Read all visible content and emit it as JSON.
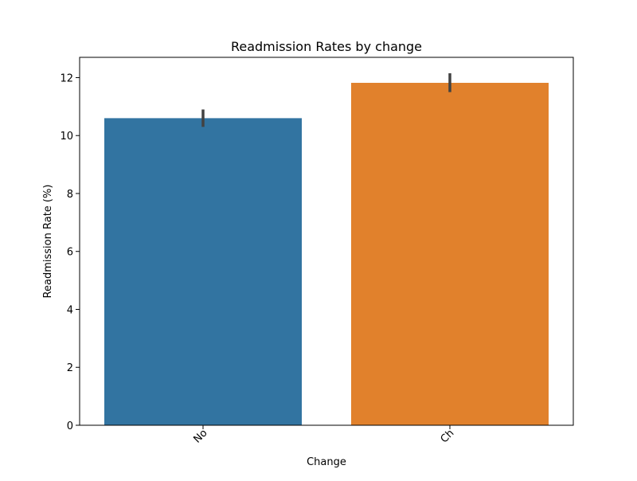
{
  "chart_data": {
    "type": "bar",
    "title": "Readmission Rates by change",
    "xlabel": "Change",
    "ylabel": "Readmission Rate (%)",
    "categories": [
      "No",
      "Ch"
    ],
    "values": [
      10.6,
      11.82
    ],
    "error_bars": [
      [
        10.3,
        10.9
      ],
      [
        11.5,
        12.15
      ]
    ],
    "colors": [
      "#3274a1",
      "#e1812c"
    ],
    "error_bar_color": "#424242",
    "ylim": [
      0,
      12.7
    ],
    "yticks": [
      0,
      2,
      4,
      6,
      8,
      10,
      12
    ],
    "ytick_labels": [
      "0",
      "2",
      "4",
      "6",
      "8",
      "10",
      "12"
    ],
    "xtick_rotation_deg": 45,
    "grid": false,
    "legend": "none"
  }
}
